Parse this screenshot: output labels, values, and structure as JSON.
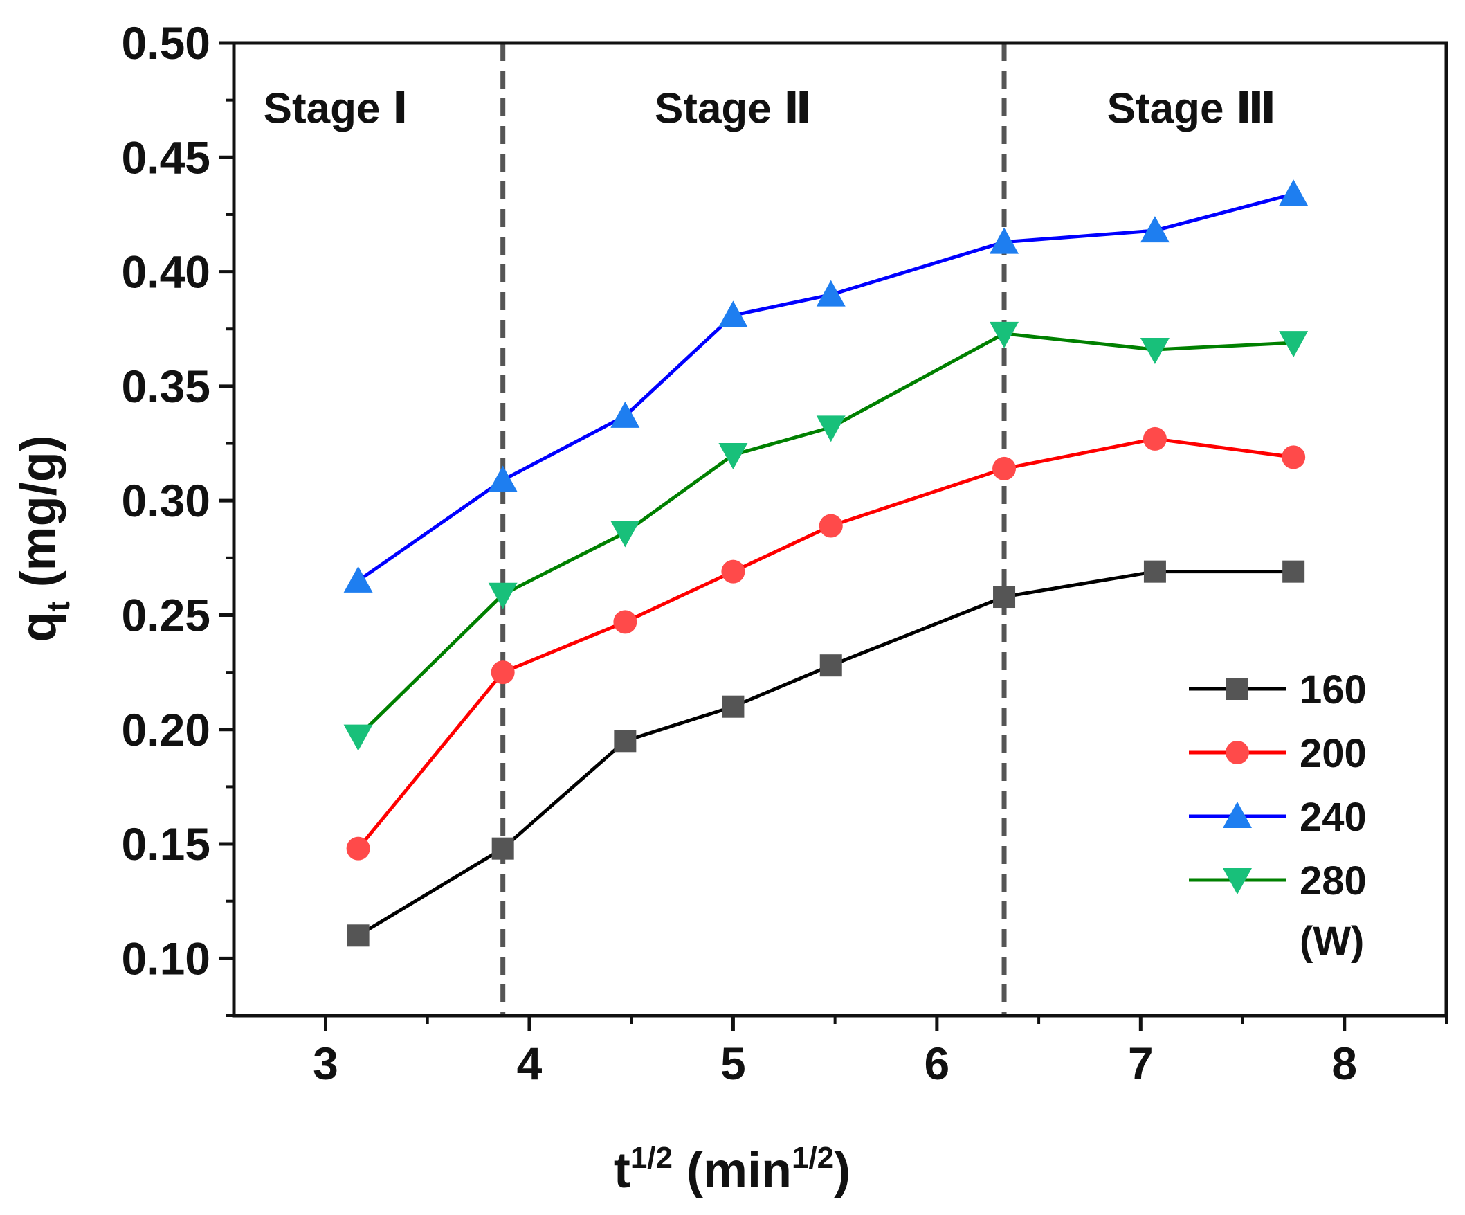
{
  "chart_data": {
    "type": "line",
    "xlabel": {
      "base": "t",
      "sup": "1/2",
      "unit_open": " (min",
      "unit_sup": "1/2",
      "unit_close": ")"
    },
    "ylabel": {
      "base": "q",
      "sub": "t",
      "unit": " (mg/g)"
    },
    "xlim": [
      2.55,
      8.5
    ],
    "ylim": [
      0.075,
      0.5
    ],
    "xticks": [
      3,
      4,
      5,
      6,
      7,
      8
    ],
    "xtick_labels": [
      "3",
      "4",
      "5",
      "6",
      "7",
      "8"
    ],
    "yticks": [
      0.1,
      0.15,
      0.2,
      0.25,
      0.3,
      0.35,
      0.4,
      0.45,
      0.5
    ],
    "ytick_labels": [
      "0.10",
      "0.15",
      "0.20",
      "0.25",
      "0.30",
      "0.35",
      "0.40",
      "0.45",
      "0.50"
    ],
    "stage_dividers": [
      3.87,
      6.33
    ],
    "stages": [
      {
        "label": "Stage Ⅰ",
        "x": 3.05,
        "y": 0.465
      },
      {
        "label": "Stage Ⅱ",
        "x": 5.0,
        "y": 0.465
      },
      {
        "label": "Stage Ⅲ",
        "x": 7.25,
        "y": 0.465
      }
    ],
    "x": [
      3.16,
      3.87,
      4.47,
      5.0,
      5.48,
      6.33,
      7.07,
      7.75
    ],
    "series": [
      {
        "name": "160",
        "color": "#000000",
        "marker_color": "#555555",
        "marker": "square",
        "values": [
          0.11,
          0.148,
          0.195,
          0.21,
          0.228,
          0.258,
          0.269,
          0.269
        ]
      },
      {
        "name": "200",
        "color": "#ff0000",
        "marker_color": "#ff4a4a",
        "marker": "circle",
        "values": [
          0.148,
          0.225,
          0.247,
          0.269,
          0.289,
          0.314,
          0.327,
          0.319
        ]
      },
      {
        "name": "240",
        "color": "#0000ff",
        "marker_color": "#1e7ef0",
        "marker": "triangle-up",
        "values": [
          0.265,
          0.309,
          0.337,
          0.381,
          0.39,
          0.413,
          0.418,
          0.434
        ]
      },
      {
        "name": "280",
        "color": "#008000",
        "marker_color": "#18c07a",
        "marker": "triangle-down",
        "values": [
          0.197,
          0.259,
          0.286,
          0.32,
          0.332,
          0.373,
          0.366,
          0.369
        ]
      }
    ],
    "legend_unit": "(W)",
    "legend_position": "bottom-right"
  }
}
